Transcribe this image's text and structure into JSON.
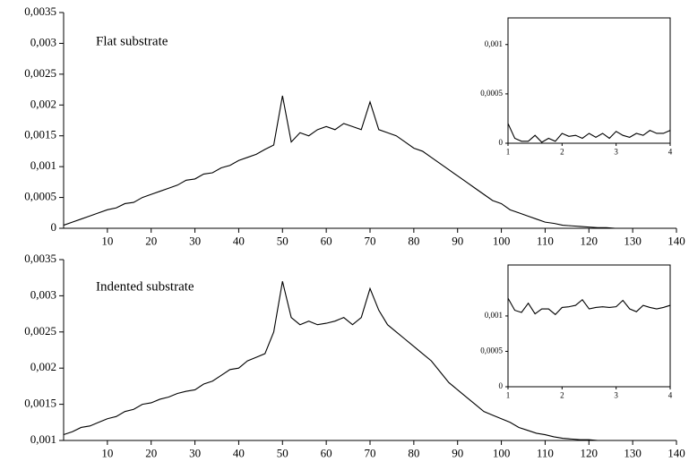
{
  "chart_data": [
    {
      "type": "line",
      "annotation": "Flat substrate",
      "color": "#000000",
      "x": [
        0,
        2,
        4,
        6,
        8,
        10,
        12,
        14,
        16,
        18,
        20,
        22,
        24,
        26,
        28,
        30,
        32,
        34,
        36,
        38,
        40,
        42,
        44,
        46,
        48,
        50,
        52,
        54,
        56,
        58,
        60,
        62,
        64,
        66,
        68,
        70,
        72,
        74,
        76,
        78,
        80,
        82,
        84,
        86,
        88,
        90,
        92,
        94,
        96,
        98,
        100,
        102,
        104,
        106,
        108,
        110,
        112,
        114,
        116,
        118,
        120,
        122,
        124,
        126,
        128,
        130,
        132,
        134,
        136,
        138,
        140
      ],
      "values": [
        5e-05,
        0.0001,
        0.00015,
        0.0002,
        0.00025,
        0.0003,
        0.00033,
        0.0004,
        0.00042,
        0.0005,
        0.00055,
        0.0006,
        0.00065,
        0.0007,
        0.00078,
        0.0008,
        0.00088,
        0.0009,
        0.00098,
        0.00102,
        0.0011,
        0.00115,
        0.0012,
        0.00128,
        0.00135,
        0.00215,
        0.0014,
        0.00155,
        0.0015,
        0.0016,
        0.00165,
        0.0016,
        0.0017,
        0.00165,
        0.0016,
        0.00205,
        0.0016,
        0.00155,
        0.0015,
        0.0014,
        0.0013,
        0.00125,
        0.00115,
        0.00105,
        0.00095,
        0.00085,
        0.00075,
        0.00065,
        0.00055,
        0.00045,
        0.0004,
        0.0003,
        0.00025,
        0.0002,
        0.00015,
        0.0001,
        8e-05,
        5e-05,
        4e-05,
        3e-05,
        2e-05,
        1e-05,
        1e-05,
        0,
        0,
        0,
        0,
        0,
        0,
        0,
        0
      ],
      "xlim": [
        0,
        140
      ],
      "xticks": [
        10,
        20,
        30,
        40,
        50,
        60,
        70,
        80,
        90,
        100,
        110,
        120,
        130,
        140
      ],
      "ylim": [
        0,
        0.0035
      ],
      "yticks": [
        0,
        {
          "value": 0.0005,
          "label": "0,0005"
        },
        {
          "value": 0.001,
          "label": "0,001"
        },
        {
          "value": 0.0015,
          "label": "0,0015"
        },
        {
          "value": 0.002,
          "label": "0,002"
        },
        {
          "value": 0.0025,
          "label": "0,0025"
        },
        {
          "value": 0.003,
          "label": "0,003"
        },
        {
          "value": 0.0035,
          "label": "0,0035"
        }
      ]
    },
    {
      "type": "line",
      "annotation": "Indented substrate",
      "color": "#000000",
      "x": [
        0,
        2,
        4,
        6,
        8,
        10,
        12,
        14,
        16,
        18,
        20,
        22,
        24,
        26,
        28,
        30,
        32,
        34,
        36,
        38,
        40,
        42,
        44,
        46,
        48,
        50,
        52,
        54,
        56,
        58,
        60,
        62,
        64,
        66,
        68,
        70,
        72,
        74,
        76,
        78,
        80,
        82,
        84,
        86,
        88,
        90,
        92,
        94,
        96,
        98,
        100,
        102,
        104,
        106,
        108,
        110,
        112,
        114,
        116,
        118,
        120,
        122,
        124,
        126,
        128,
        130,
        132,
        134,
        136,
        138,
        140
      ],
      "values": [
        0.00108,
        0.00112,
        0.00118,
        0.0012,
        0.00125,
        0.0013,
        0.00133,
        0.0014,
        0.00143,
        0.0015,
        0.00152,
        0.00157,
        0.0016,
        0.00165,
        0.00168,
        0.0017,
        0.00178,
        0.00182,
        0.0019,
        0.00198,
        0.002,
        0.0021,
        0.00215,
        0.0022,
        0.0025,
        0.0032,
        0.0027,
        0.0026,
        0.00265,
        0.0026,
        0.00262,
        0.00265,
        0.0027,
        0.0026,
        0.0027,
        0.0031,
        0.0028,
        0.0026,
        0.0025,
        0.0024,
        0.0023,
        0.0022,
        0.0021,
        0.00195,
        0.0018,
        0.0017,
        0.0016,
        0.0015,
        0.0014,
        0.00135,
        0.0013,
        0.00125,
        0.00118,
        0.00114,
        0.0011,
        0.00108,
        0.00105,
        0.00103,
        0.00102,
        0.00101,
        0.00101,
        0.001,
        0.001,
        0.001,
        0.001,
        0.001,
        0.001,
        0.001,
        0.001,
        0.001,
        0.001
      ],
      "xlim": [
        0,
        140
      ],
      "xticks": [
        10,
        20,
        30,
        40,
        50,
        60,
        70,
        80,
        90,
        100,
        110,
        120,
        130,
        140
      ],
      "ylim": [
        0.001,
        0.0035
      ],
      "yticks": [
        {
          "value": 0.001,
          "label": "0,001"
        },
        {
          "value": 0.0015,
          "label": "0,0015"
        },
        {
          "value": 0.002,
          "label": "0,002"
        },
        {
          "value": 0.0025,
          "label": "0,0025"
        },
        {
          "value": 0.003,
          "label": "0,003"
        },
        {
          "value": 0.0035,
          "label": "0,0035"
        }
      ]
    },
    {
      "type": "line",
      "color": "#000000",
      "x": [
        1,
        1.125,
        1.25,
        1.375,
        1.5,
        1.625,
        1.75,
        1.875,
        2,
        2.125,
        2.25,
        2.375,
        2.5,
        2.625,
        2.75,
        2.875,
        3,
        3.125,
        3.25,
        3.375,
        3.5,
        3.625,
        3.75,
        3.875,
        4
      ],
      "values": [
        0.0002,
        5e-05,
        2e-05,
        2e-05,
        8e-05,
        1e-05,
        5e-05,
        2e-05,
        0.0001,
        7e-05,
        8e-05,
        5e-05,
        0.0001,
        6e-05,
        0.0001,
        5e-05,
        0.00012,
        8e-05,
        6e-05,
        0.0001,
        8e-05,
        0.00013,
        0.0001,
        0.0001,
        0.00013
      ],
      "xlim": [
        1,
        4
      ],
      "xticks": [
        1,
        2,
        3,
        4
      ],
      "ylim": [
        0,
        0.00127
      ],
      "yticks": [
        0,
        {
          "value": 0.0005,
          "label": "0,0005"
        },
        {
          "value": 0.001,
          "label": "0,001"
        }
      ]
    },
    {
      "type": "line",
      "color": "#000000",
      "x": [
        1,
        1.125,
        1.25,
        1.375,
        1.5,
        1.625,
        1.75,
        1.875,
        2,
        2.125,
        2.25,
        2.375,
        2.5,
        2.625,
        2.75,
        2.875,
        3,
        3.125,
        3.25,
        3.375,
        3.5,
        3.625,
        3.75,
        3.875,
        4
      ],
      "values": [
        0.00125,
        0.00108,
        0.00105,
        0.00118,
        0.00103,
        0.0011,
        0.0011,
        0.00102,
        0.00112,
        0.00113,
        0.00115,
        0.00123,
        0.0011,
        0.00112,
        0.00113,
        0.00112,
        0.00113,
        0.00122,
        0.0011,
        0.00106,
        0.00115,
        0.00112,
        0.0011,
        0.00112,
        0.00115
      ],
      "xlim": [
        1,
        4
      ],
      "xticks": [
        1,
        2,
        3,
        4
      ],
      "ylim": [
        0,
        0.00172
      ],
      "yticks": [
        0,
        {
          "value": 0.0005,
          "label": "0,0005"
        },
        {
          "value": 0.001,
          "label": "0,001"
        }
      ]
    }
  ]
}
